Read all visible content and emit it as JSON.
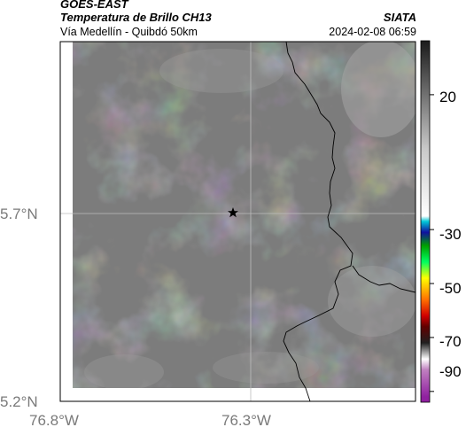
{
  "header": {
    "satellite": "GOES-EAST",
    "product": "Temperatura de Brillo CH13",
    "location": "Vía Medellín - Quibdó 50km",
    "agency": "SIATA",
    "timestamp": "2024-02-08 06:59"
  },
  "map": {
    "lat_ticks": [
      "5.7°N",
      "5.2°N"
    ],
    "lon_ticks": [
      "76.8°W",
      "76.3°W"
    ],
    "marker_icon": "star-icon",
    "boundary_color": "#000000",
    "graticule_color": "#bdbdbd"
  },
  "colorbar": {
    "ticks": [
      "20",
      "-30",
      "-50",
      "-70",
      "-90"
    ],
    "stops": [
      {
        "v": 40,
        "color": "#1a1a1a"
      },
      {
        "v": 0,
        "color": "#c8c8c8"
      },
      {
        "v": -25,
        "color": "#ffffff"
      },
      {
        "v": -27,
        "color": "#00c8d8"
      },
      {
        "v": -31,
        "color": "#1010a0"
      },
      {
        "v": -36,
        "color": "#00a000"
      },
      {
        "v": -42,
        "color": "#00ff60"
      },
      {
        "v": -48,
        "color": "#ffff00"
      },
      {
        "v": -56,
        "color": "#ff7000"
      },
      {
        "v": -62,
        "color": "#d00000"
      },
      {
        "v": -66,
        "color": "#600000"
      },
      {
        "v": -72,
        "color": "#202020"
      },
      {
        "v": -78,
        "color": "#ffffff"
      },
      {
        "v": -82,
        "color": "#c080c0"
      },
      {
        "v": -92,
        "color": "#9020a0"
      }
    ]
  }
}
